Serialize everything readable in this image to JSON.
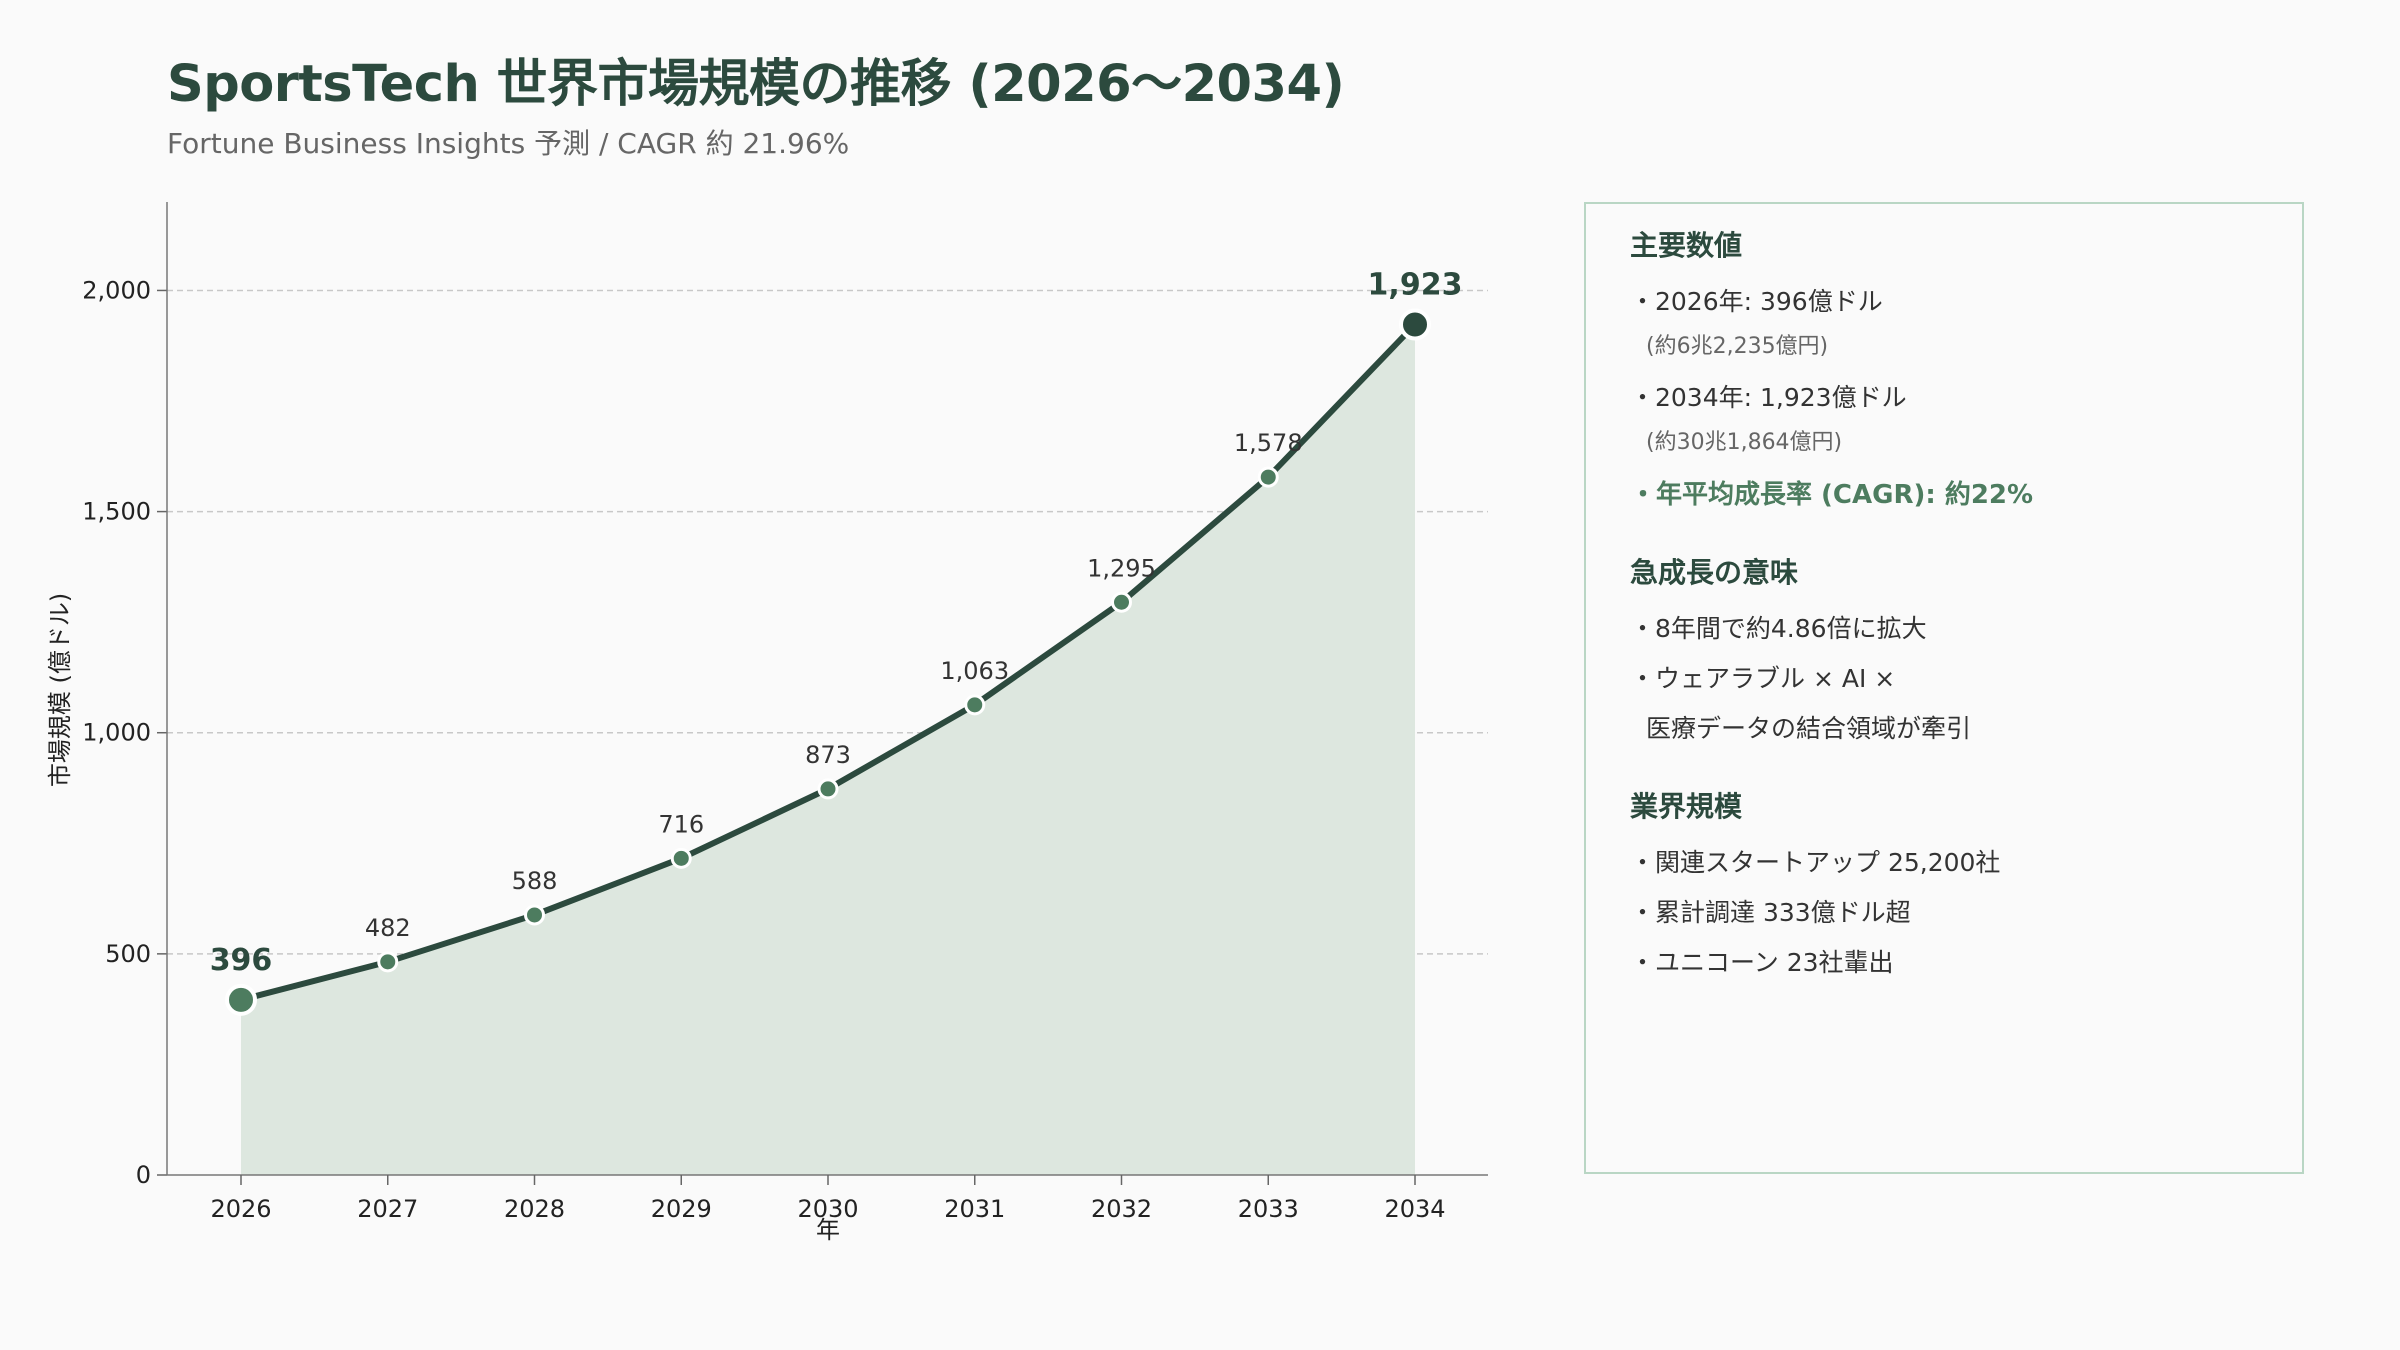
{
  "header": {
    "title": "SportsTech 世界市場規模の推移 (2026〜2034)",
    "subtitle": "Fortune Business Insights 予測 / CAGR 約 21.96%"
  },
  "chart_data": {
    "type": "area",
    "title": "",
    "xlabel": "年",
    "ylabel": "市場規模 (億ドル)",
    "categories": [
      "2026",
      "2027",
      "2028",
      "2029",
      "2030",
      "2031",
      "2032",
      "2033",
      "2034"
    ],
    "values": [
      396,
      482,
      588,
      716,
      873,
      1063,
      1295,
      1578,
      1923
    ],
    "data_labels": [
      "396",
      "482",
      "588",
      "716",
      "873",
      "1,063",
      "1,295",
      "1,578",
      "1,923"
    ],
    "ylim": [
      0,
      2200
    ],
    "yticks": [
      0,
      500,
      1000,
      1500,
      2000
    ],
    "ytick_labels": [
      "0",
      "500",
      "1,000",
      "1,500",
      "2,000"
    ],
    "grid": "horizontal-dashed",
    "colors": {
      "line": "#2c4a3e",
      "fill": "#dde7df",
      "marker": "#4d7c5f",
      "marker_end": "#2c4a3e"
    }
  },
  "panel": {
    "sections": [
      {
        "heading": "主要数値",
        "items": [
          {
            "text": "・2026年: 396億ドル",
            "style": "normal"
          },
          {
            "text": "(約6兆2,235億円)",
            "style": "sub"
          },
          {
            "text": "・2034年: 1,923億ドル",
            "style": "normal"
          },
          {
            "text": "(約30兆1,864億円)",
            "style": "sub"
          },
          {
            "text": "・年平均成長率 (CAGR): 約22%",
            "style": "strong"
          }
        ]
      },
      {
        "heading": "急成長の意味",
        "items": [
          {
            "text": "・8年間で約4.86倍に拡大",
            "style": "normal"
          },
          {
            "text": "・ウェアラブル × AI ×",
            "style": "normal"
          },
          {
            "text": "医療データの結合領域が牽引",
            "style": "cont"
          }
        ]
      },
      {
        "heading": "業界規模",
        "items": [
          {
            "text": "・関連スタートアップ 25,200社",
            "style": "normal"
          },
          {
            "text": "・累計調達 333億ドル超",
            "style": "normal"
          },
          {
            "text": "・ユニコーン 23社輩出",
            "style": "normal"
          }
        ]
      }
    ]
  }
}
